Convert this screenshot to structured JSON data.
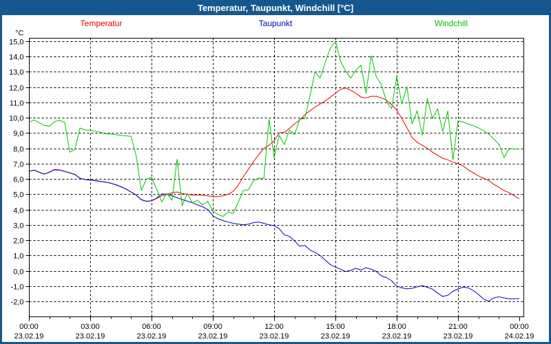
{
  "window": {
    "title": "Temperatur, Taupunkt, Windchill [°C]"
  },
  "legend": [
    {
      "label": "Temperatur",
      "color": "#e60000"
    },
    {
      "label": "Taupunkt",
      "color": "#0000bb"
    },
    {
      "label": "Windchill",
      "color": "#00c400"
    }
  ],
  "chart_data": {
    "type": "line",
    "title": "Temperatur, Taupunkt, Windchill [°C]",
    "grid": "dashed",
    "legend_position": "top",
    "y_axis": {
      "unit_label": "°C",
      "min": -2.0,
      "max": 15.0,
      "tick_step": 1.0,
      "tick_labels": [
        "15,0",
        "14,0",
        "13,0",
        "12,0",
        "11,0",
        "10,0",
        "9,0",
        "8,0",
        "7,0",
        "6,0",
        "5,0",
        "4,0",
        "3,0",
        "2,0",
        "1,0",
        "0,0",
        "-1,0",
        "-2,0"
      ]
    },
    "x_axis": {
      "start_hour": 0,
      "end_hour": 24,
      "major_tick_hours": 3,
      "minor_tick_hours": 1,
      "tick_labels": [
        {
          "time": "00:00",
          "date": "23.02.19"
        },
        {
          "time": "03:00",
          "date": "23.02.19"
        },
        {
          "time": "06:00",
          "date": "23.02.19"
        },
        {
          "time": "09:00",
          "date": "23.02.19"
        },
        {
          "time": "12:00",
          "date": "23.02.19"
        },
        {
          "time": "15:00",
          "date": "23.02.19"
        },
        {
          "time": "18:00",
          "date": "23.02.19"
        },
        {
          "time": "21:00",
          "date": "23.02.19"
        },
        {
          "time": "00:00",
          "date": "24.02.19"
        }
      ]
    },
    "sample_step_hours": 0.25,
    "series": [
      {
        "name": "Temperatur",
        "color": "#e60000",
        "values": [
          6.5,
          6.58,
          6.45,
          6.32,
          6.45,
          6.62,
          6.6,
          6.5,
          6.4,
          6.3,
          6.05,
          5.97,
          5.93,
          5.9,
          5.85,
          5.8,
          5.73,
          5.63,
          5.5,
          5.35,
          5.15,
          4.95,
          4.65,
          4.55,
          4.58,
          4.72,
          4.9,
          5.0,
          5.1,
          5.15,
          5.05,
          5.0,
          4.95,
          4.95,
          4.93,
          4.9,
          4.85,
          4.85,
          4.9,
          5.0,
          5.2,
          5.6,
          6.15,
          6.65,
          7.15,
          7.6,
          8.0,
          8.2,
          8.5,
          9.0,
          9.05,
          9.3,
          9.6,
          9.85,
          10.2,
          10.45,
          10.7,
          10.9,
          11.1,
          11.35,
          11.6,
          11.85,
          11.95,
          11.8,
          11.6,
          11.35,
          11.3,
          11.4,
          11.4,
          11.3,
          11.15,
          10.85,
          10.5,
          9.95,
          9.35,
          8.7,
          8.4,
          8.2,
          8.0,
          7.75,
          7.55,
          7.35,
          7.25,
          7.1,
          7.0,
          6.85,
          6.6,
          6.4,
          6.2,
          6.05,
          5.9,
          5.65,
          5.45,
          5.25,
          5.1,
          4.9,
          4.7
        ]
      },
      {
        "name": "Taupunkt",
        "color": "#0000bb",
        "values": [
          6.5,
          6.57,
          6.44,
          6.31,
          6.44,
          6.6,
          6.58,
          6.49,
          6.39,
          6.29,
          6.04,
          5.96,
          5.92,
          5.88,
          5.84,
          5.79,
          5.72,
          5.62,
          5.49,
          5.34,
          5.14,
          4.94,
          4.64,
          4.54,
          4.57,
          4.75,
          5.02,
          5.0,
          4.9,
          4.78,
          4.65,
          4.55,
          4.45,
          4.3,
          4.18,
          4.0,
          3.6,
          3.4,
          3.28,
          3.18,
          3.1,
          3.05,
          3.0,
          3.05,
          3.15,
          3.18,
          3.1,
          3.0,
          2.95,
          2.75,
          2.35,
          2.25,
          1.95,
          1.6,
          1.65,
          1.36,
          1.2,
          1.0,
          0.7,
          0.4,
          0.23,
          0.1,
          -0.05,
          0.03,
          0.16,
          0.05,
          0.2,
          0.1,
          -0.05,
          -0.33,
          -0.45,
          -0.65,
          -1.0,
          -1.12,
          -1.18,
          -1.15,
          -1.05,
          -0.97,
          -1.08,
          -1.2,
          -1.45,
          -1.68,
          -1.6,
          -1.35,
          -1.19,
          -1.08,
          -1.12,
          -1.3,
          -1.55,
          -1.85,
          -2.0,
          -1.78,
          -1.7,
          -1.78,
          -1.83,
          -1.83,
          -1.82
        ]
      },
      {
        "name": "Windchill",
        "color": "#00c400",
        "values": [
          9.7,
          9.86,
          9.68,
          9.5,
          9.45,
          9.75,
          9.83,
          9.7,
          7.75,
          7.95,
          9.33,
          9.2,
          9.18,
          9.12,
          9.05,
          8.95,
          8.93,
          8.9,
          8.85,
          8.82,
          8.78,
          7.5,
          5.25,
          6.0,
          6.1,
          5.35,
          4.5,
          5.05,
          4.6,
          7.3,
          4.25,
          5.05,
          4.45,
          4.6,
          4.3,
          4.55,
          3.9,
          3.68,
          3.55,
          3.85,
          3.75,
          4.5,
          5.25,
          5.3,
          5.9,
          6.05,
          6.05,
          9.9,
          7.4,
          8.85,
          8.25,
          9.2,
          8.9,
          9.9,
          9.95,
          11.4,
          13.0,
          12.6,
          13.6,
          14.55,
          15.0,
          13.7,
          13.05,
          12.6,
          13.1,
          13.45,
          11.6,
          14.05,
          12.7,
          12.15,
          11.05,
          10.6,
          12.7,
          10.9,
          12.05,
          9.6,
          10.45,
          8.85,
          11.25,
          9.95,
          10.6,
          9.1,
          10.45,
          7.25,
          9.8,
          9.72,
          9.6,
          9.48,
          9.33,
          9.15,
          8.95,
          8.6,
          8.28,
          7.4,
          8.0,
          7.95,
          7.95
        ]
      }
    ]
  }
}
